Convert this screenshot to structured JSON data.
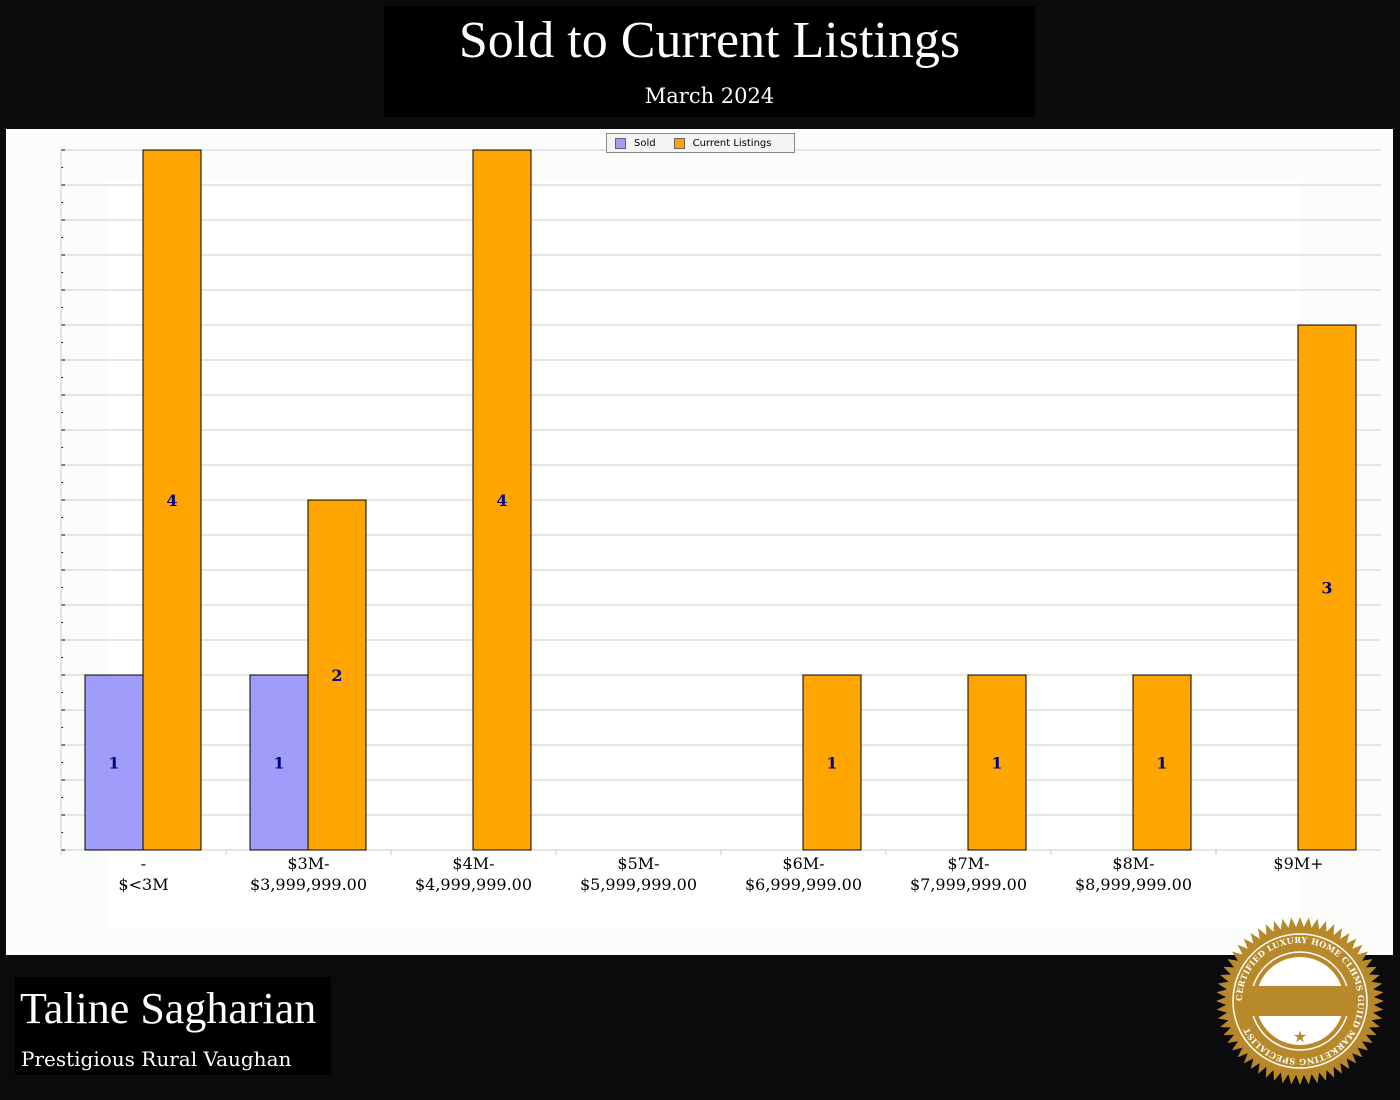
{
  "header": {
    "title": "Sold to Current Listings",
    "subtitle": "March 2024"
  },
  "footer": {
    "agent_name": "Taline Sagharian",
    "area": "Prestigious Rural Vaughan",
    "badge_text": "CERTIFIED LUXURY HOME CLHMS GUILD MARKETING SPECIALIST"
  },
  "chart_data": {
    "type": "bar",
    "title": "Sold to Current Listings",
    "subtitle": "March 2024",
    "categories": [
      [
        "-",
        "$<3M"
      ],
      [
        "$3M-",
        "$3,999,999.00"
      ],
      [
        "$4M-",
        "$4,999,999.00"
      ],
      [
        "$5M-",
        "$5,999,999.00"
      ],
      [
        "$6M-",
        "$6,999,999.00"
      ],
      [
        "$7M-",
        "$7,999,999.00"
      ],
      [
        "$8M-",
        "$8,999,999.00"
      ],
      [
        "$9M+",
        ""
      ]
    ],
    "series": [
      {
        "name": "Sold",
        "color": "#a09cfa",
        "values": [
          1,
          1,
          0,
          0,
          0,
          0,
          0,
          0
        ]
      },
      {
        "name": "Current Listings",
        "color": "#ffa500",
        "values": [
          4,
          2,
          4,
          0,
          1,
          1,
          1,
          3
        ]
      }
    ],
    "ylim": [
      0,
      4
    ],
    "grid": true,
    "legend": "top-center",
    "data_labels": true
  }
}
